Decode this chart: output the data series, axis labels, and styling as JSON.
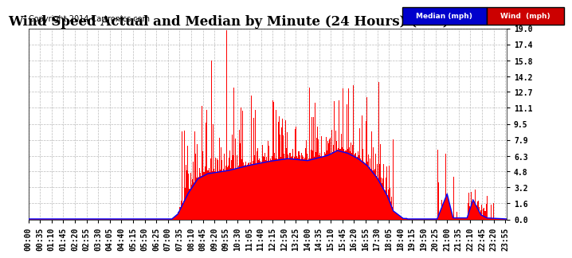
{
  "title": "Wind Speed Actual and Median by Minute (24 Hours) (Old) 20140411",
  "copyright": "Copyright 2014 Cartronics.com",
  "legend_median_label": "Median (mph)",
  "legend_wind_label": "Wind  (mph)",
  "legend_median_bg": "#0000cc",
  "legend_wind_bg": "#cc0000",
  "yticks": [
    0.0,
    1.6,
    3.2,
    4.8,
    6.3,
    7.9,
    9.5,
    11.1,
    12.7,
    14.2,
    15.8,
    17.4,
    19.0
  ],
  "ymax": 19.0,
  "ymin": 0.0,
  "bar_color": "#ff0000",
  "line_color": "#0000ff",
  "background_color": "#ffffff",
  "grid_color": "#bbbbbb",
  "title_fontsize": 12,
  "axis_fontsize": 7,
  "copyright_fontsize": 7,
  "tick_interval_minutes": 35
}
